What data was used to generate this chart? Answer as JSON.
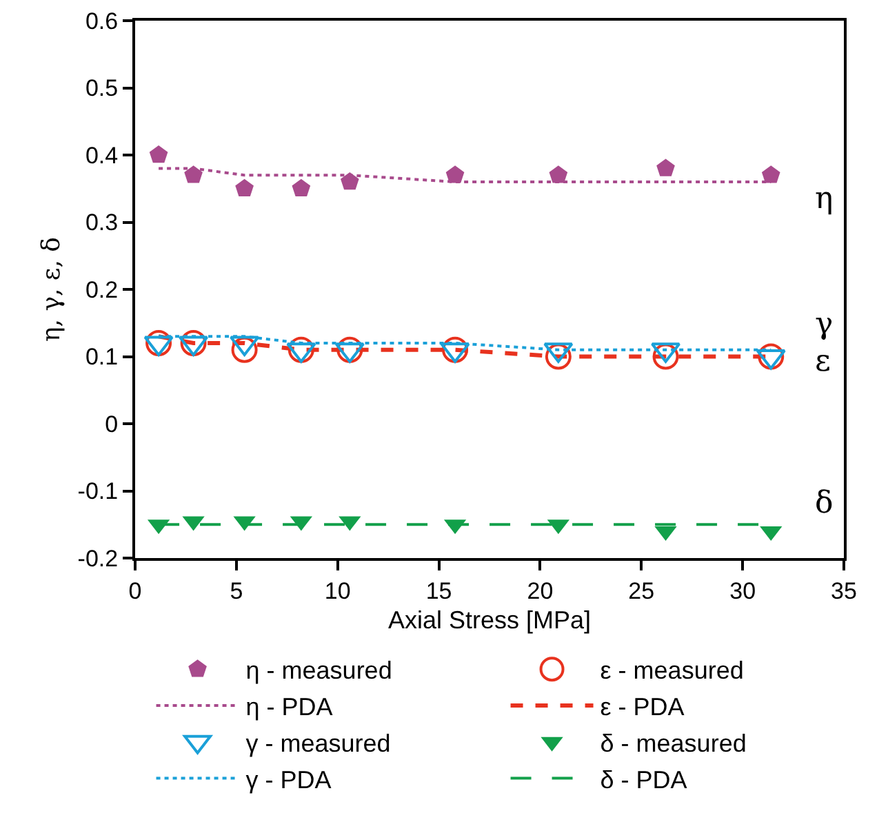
{
  "chart_data": {
    "type": "scatter",
    "xlabel": "Axial Stress [MPa]",
    "ylabel": "η, γ, ε, δ",
    "xlim": [
      0,
      35
    ],
    "xticks": [
      0,
      5,
      10,
      15,
      20,
      25,
      30,
      35
    ],
    "ylim": [
      -0.2,
      0.6
    ],
    "yticks": [
      -0.2,
      -0.1,
      0,
      0.1,
      0.2,
      0.3,
      0.4,
      0.5,
      0.6
    ],
    "x": [
      1.16,
      2.88,
      5.4,
      8.2,
      10.6,
      15.8,
      20.9,
      26.2,
      31.4
    ],
    "grid": false,
    "legend": "bottom",
    "series": [
      {
        "name": "η - measured",
        "color": "#a84a8c",
        "values": [
          0.4,
          0.37,
          0.35,
          0.35,
          0.36,
          0.37,
          0.37,
          0.38,
          0.37
        ]
      },
      {
        "name": "ε - measured",
        "marker": "circle-open",
        "color": "#e8321e",
        "values": [
          0.12,
          0.12,
          0.11,
          0.11,
          0.11,
          0.11,
          0.1,
          0.1,
          0.1
        ]
      },
      {
        "name": "η - PDA",
        "type": "line",
        "marker": "none",
        "line_style": "dotted",
        "color": "#a84a8c",
        "values": [
          0.38,
          0.38,
          0.37,
          0.37,
          0.37,
          0.36,
          0.36,
          0.36,
          0.36
        ]
      },
      {
        "name": "ε - PDA",
        "type": "line",
        "marker": "none",
        "line_style": "dashed",
        "color": "#e8321e",
        "values": [
          0.13,
          0.12,
          0.12,
          0.11,
          0.11,
          0.11,
          0.1,
          0.1,
          0.1
        ]
      },
      {
        "name": "γ - measured",
        "marker": "triangle-open",
        "color": "#1aa0d8",
        "values": [
          0.12,
          0.12,
          0.12,
          0.11,
          0.11,
          0.11,
          0.11,
          0.11,
          0.1
        ]
      },
      {
        "name": "δ - measured",
        "marker": "triangle",
        "color": "#12a04a",
        "values": [
          -0.15,
          -0.145,
          -0.145,
          -0.145,
          -0.145,
          -0.15,
          -0.15,
          -0.16,
          -0.16
        ]
      },
      {
        "name": "γ - PDA",
        "type": "line",
        "marker": "none",
        "line_style": "dotted",
        "color": "#1aa0d8",
        "values": [
          0.13,
          0.13,
          0.13,
          0.12,
          0.12,
          0.12,
          0.11,
          0.11,
          0.11
        ]
      },
      {
        "name": "δ - PDA",
        "type": "line",
        "marker": "none",
        "line_style": "longdash",
        "color": "#12a04a",
        "values": [
          -0.15,
          -0.15,
          -0.15,
          -0.15,
          -0.15,
          -0.15,
          -0.15,
          -0.15,
          -0.15
        ]
      }
    ],
    "annotations": [
      "η",
      "γ",
      "ε",
      "δ"
    ]
  }
}
